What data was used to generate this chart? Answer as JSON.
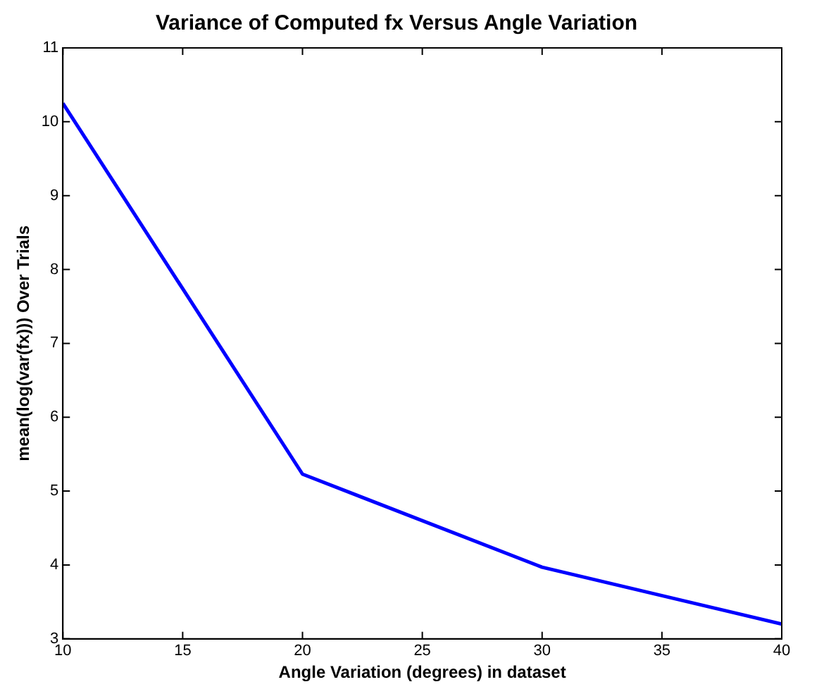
{
  "chart_data": {
    "type": "line",
    "title": "Variance of Computed fx Versus Angle Variation",
    "xlabel": "Angle Variation (degrees) in dataset",
    "ylabel": "mean(log(var(fx))) Over Trials",
    "x": [
      10,
      20,
      30,
      40
    ],
    "series": [
      {
        "color": "#0000ff",
        "values": [
          10.25,
          5.23,
          3.97,
          3.2
        ]
      }
    ],
    "xlim": [
      10,
      40
    ],
    "xticks": [
      10,
      15,
      20,
      25,
      30,
      35,
      40
    ],
    "ylim": [
      3,
      11
    ],
    "yticks": [
      3,
      4,
      5,
      6,
      7,
      8,
      9,
      10,
      11
    ],
    "grid": false,
    "legend": false,
    "marker": "none",
    "line_style": "solid"
  }
}
